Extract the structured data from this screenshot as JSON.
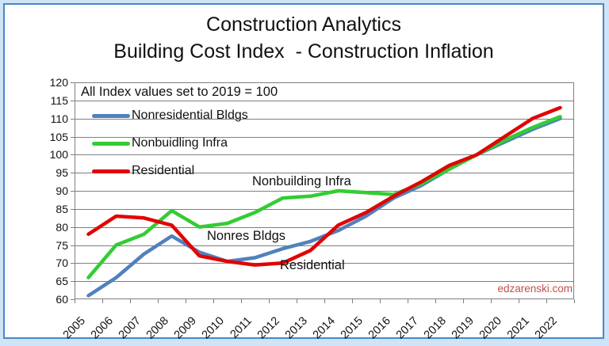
{
  "title_line1": "Construction Analytics",
  "title_line2": "Building Cost Index  - Construction Inflation",
  "annotation_box_text": "All Index values set to 2019 = 100",
  "watermark": "edzarenski.com",
  "inplot_labels": {
    "nonbuilding": "Nonbuilding Infra",
    "nonres": "Nonres Bldgs",
    "residential": "Residential"
  },
  "colors": {
    "nonresidential": "#4F81BD",
    "nonbuilding": "#33CC33",
    "residential": "#E00505",
    "gridline": "#7f7f7f",
    "watermark": "#C0504D",
    "frame_border": "#4a87c7",
    "outer_background": "#cfe4f6"
  },
  "chart_data": {
    "type": "line",
    "title": "Construction Analytics  Building Cost Index - Construction Inflation",
    "categories": [
      "2005",
      "2006",
      "2007",
      "2008",
      "2009",
      "2010",
      "2011",
      "2012",
      "2013",
      "2014",
      "2015",
      "2016",
      "2017",
      "2018",
      "2019",
      "2020",
      "2021",
      "2022"
    ],
    "series": [
      {
        "name": "Nonresidential Bldgs",
        "color": "#4F81BD",
        "values": [
          61,
          66,
          72.5,
          77.5,
          73,
          70.5,
          71.5,
          74,
          76,
          79,
          83,
          88,
          91.5,
          96,
          100,
          103.5,
          107,
          110
        ]
      },
      {
        "name": "Nonbuidling Infra",
        "color": "#33CC33",
        "values": [
          66,
          75,
          78,
          84.5,
          80,
          81,
          84,
          88,
          88.5,
          90,
          89.5,
          89,
          92,
          96,
          100,
          104,
          107.5,
          110.5
        ]
      },
      {
        "name": "Residential",
        "color": "#E00505",
        "values": [
          78,
          83,
          82.5,
          80.5,
          72,
          70.5,
          69.5,
          70,
          73.5,
          80.5,
          84,
          88.5,
          92.5,
          97,
          100,
          105,
          110,
          113
        ]
      }
    ],
    "ylim": [
      60,
      120
    ],
    "yticks": [
      120,
      115,
      110,
      105,
      100,
      95,
      90,
      85,
      80,
      75,
      70,
      65,
      60
    ],
    "grid": true,
    "legend_position": "top-left-inside",
    "annotations": [
      "All Index values set to 2019 = 100",
      "Nonbuilding Infra",
      "Nonres Bldgs",
      "Residential",
      "edzarenski.com"
    ]
  }
}
